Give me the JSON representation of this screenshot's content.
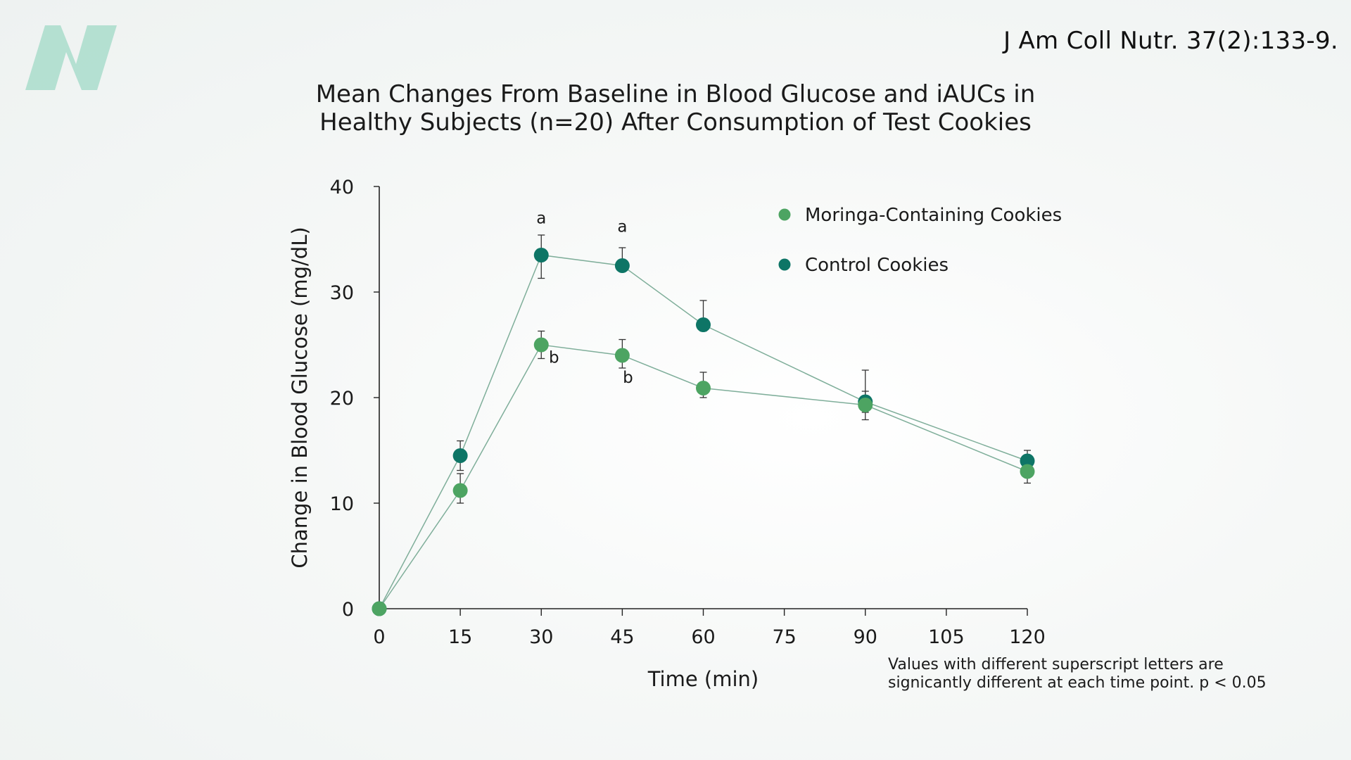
{
  "citation": "J Am Coll Nutr. 37(2):133-9.",
  "note": {
    "line1": "Values with different superscript letters are",
    "line2": "signicantly different at each time point. p < 0.05"
  },
  "colors": {
    "moringa": "#4da462",
    "control": "#0e7566",
    "line": "#7fae9a",
    "axis": "#222222",
    "logo": "#a9dccb"
  },
  "chart_data": {
    "type": "line",
    "title_line1": "Mean Changes From Baseline in Blood Glucose and iAUCs in",
    "title_line2": "Healthy Subjects (n=20) After Consumption of Test Cookies",
    "xlabel": "Time (min)",
    "ylabel": "Change in Blood Glucose (mg/dL)",
    "xlim": [
      0,
      120
    ],
    "ylim": [
      0,
      40
    ],
    "xticks": [
      "0",
      "15",
      "30",
      "45",
      "60",
      "75",
      "90",
      "105",
      "120"
    ],
    "yticks": [
      "0",
      "10",
      "20",
      "30",
      "40"
    ],
    "grid": false,
    "legend_position": "top-right",
    "series": [
      {
        "name": "Moringa-Containing Cookies",
        "color": "#4da462",
        "x": [
          0,
          15,
          30,
          45,
          60,
          90,
          120
        ],
        "y": [
          0,
          11.2,
          25.0,
          24.0,
          20.9,
          19.3,
          13.0
        ],
        "err_up": [
          0,
          1.6,
          1.3,
          1.5,
          1.5,
          1.3,
          1.0
        ],
        "err_down": [
          0,
          1.2,
          1.3,
          1.2,
          0.9,
          1.4,
          1.1
        ]
      },
      {
        "name": "Control Cookies",
        "color": "#0e7566",
        "x": [
          0,
          15,
          30,
          45,
          60,
          90,
          120
        ],
        "y": [
          0,
          14.5,
          33.5,
          32.5,
          26.9,
          19.6,
          14.0
        ],
        "err_up": [
          0,
          1.4,
          1.9,
          1.7,
          2.3,
          3.0,
          1.0
        ],
        "err_down": [
          0,
          1.4,
          2.2,
          0,
          0.6,
          1.0,
          0.9
        ]
      }
    ],
    "annotations": [
      {
        "text": "a",
        "x": 30,
        "y": 36.5,
        "anchor": "middle"
      },
      {
        "text": "a",
        "x": 45,
        "y": 35.7,
        "anchor": "middle"
      },
      {
        "text": "b",
        "x": 31.4,
        "y": 23.3,
        "anchor": "start"
      },
      {
        "text": "b",
        "x": 45.1,
        "y": 21.4,
        "anchor": "start"
      }
    ]
  }
}
